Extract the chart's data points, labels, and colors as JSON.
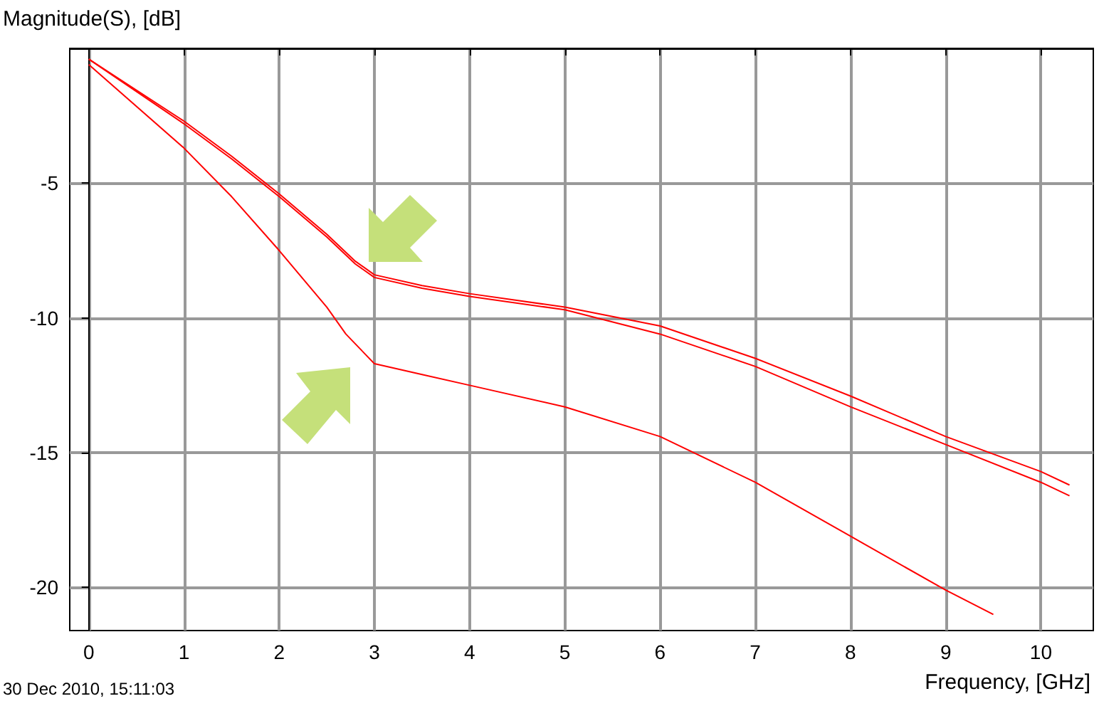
{
  "chart_data": {
    "type": "line",
    "ylabel": "Magnitude(S), [dB]",
    "xlabel": "Frequency, [GHz]",
    "annotations": [
      "30 Dec 2010, 15:11:03"
    ],
    "xlim": [
      -0.2,
      10.55
    ],
    "xticks": [
      0,
      1,
      2,
      3,
      4,
      5,
      6,
      7,
      8,
      9,
      10
    ],
    "ylim": [
      -21.6,
      0
    ],
    "yticks": [
      -5,
      -10,
      -15,
      -20
    ],
    "grid": true,
    "marker": "none",
    "line_style": "solid",
    "series": [
      {
        "color": "#ff0000",
        "x": [
          0,
          1,
          1.5,
          2,
          2.5,
          2.8,
          3,
          3.5,
          4,
          5,
          6,
          7,
          8,
          9,
          10,
          10.3
        ],
        "values": [
          -0.4,
          -2.7,
          -4.0,
          -5.4,
          -6.9,
          -7.9,
          -8.4,
          -8.8,
          -9.1,
          -9.6,
          -10.3,
          -11.5,
          -12.9,
          -14.4,
          -15.7,
          -16.2
        ]
      },
      {
        "color": "#ff0000",
        "x": [
          0,
          1,
          1.5,
          2,
          2.5,
          2.8,
          3,
          3.5,
          4,
          5,
          6,
          7,
          8,
          9,
          10,
          10.3
        ],
        "values": [
          -0.4,
          -2.8,
          -4.1,
          -5.5,
          -7.0,
          -8.0,
          -8.5,
          -8.9,
          -9.2,
          -9.7,
          -10.6,
          -11.8,
          -13.3,
          -14.7,
          -16.1,
          -16.6
        ]
      },
      {
        "color": "#ff0000",
        "x": [
          0,
          1,
          1.5,
          2,
          2.5,
          2.7,
          3,
          3.5,
          4,
          5,
          6,
          7,
          8,
          9,
          9.5
        ],
        "values": [
          -0.6,
          -3.7,
          -5.5,
          -7.5,
          -9.6,
          -10.6,
          -11.7,
          -12.1,
          -12.5,
          -13.3,
          -14.4,
          -16.1,
          -18.1,
          -20.1,
          -21.0
        ]
      }
    ]
  }
}
